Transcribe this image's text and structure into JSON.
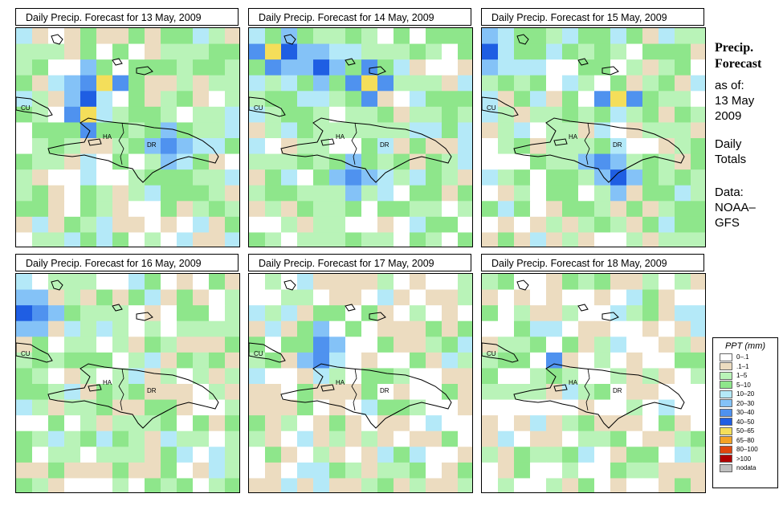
{
  "panels": [
    {
      "title": "Daily Precip. Forecast for  13 May, 2009",
      "seed": 11,
      "hot": [
        [
          3,
          5,
          0.95
        ],
        [
          4,
          4,
          0.9
        ],
        [
          5,
          4,
          0.95
        ],
        [
          3,
          4,
          0.8
        ],
        [
          7,
          9,
          0.7
        ]
      ],
      "pale": 0.35
    },
    {
      "title": "Daily Precip. Forecast for  14 May, 2009",
      "seed": 23,
      "hot": [
        [
          1,
          1,
          0.95
        ],
        [
          1,
          2,
          0.9
        ],
        [
          2,
          4,
          0.9
        ],
        [
          3,
          7,
          0.95
        ],
        [
          9,
          6,
          0.8
        ]
      ],
      "pale": 0.25
    },
    {
      "title": "Daily Precip. Forecast for  15 May, 2009",
      "seed": 37,
      "hot": [
        [
          1,
          0,
          0.85
        ],
        [
          4,
          8,
          0.95
        ],
        [
          9,
          8,
          0.85
        ],
        [
          8,
          7,
          0.75
        ]
      ],
      "pale": 0.3
    },
    {
      "title": "Daily Precip. Forecast for  16 May, 2009",
      "seed": 41,
      "hot": [
        [
          2,
          0,
          0.85
        ],
        [
          2,
          1,
          0.8
        ]
      ],
      "pale": 0.45
    },
    {
      "title": "Daily Precip. Forecast for  17 May, 2009",
      "seed": 53,
      "hot": [
        [
          5,
          4,
          0.8
        ],
        [
          4,
          4,
          0.7
        ]
      ],
      "pale": 0.55
    },
    {
      "title": "Daily Precip. Forecast for  18 May, 2009",
      "seed": 67,
      "hot": [
        [
          5,
          4,
          0.55
        ]
      ],
      "pale": 0.6
    }
  ],
  "map_labels": {
    "cu": "CU",
    "ha": "HA",
    "dr": "DR"
  },
  "side": {
    "heading_line1": "Precip.",
    "heading_line2": "Forecast",
    "asof": "as of:",
    "date_line1": "13 May",
    "date_line2": "2009",
    "daily_line1": "Daily",
    "daily_line2": "Totals",
    "data_line1": "Data:",
    "data_line2": "NOAA–",
    "data_line3": "GFS"
  },
  "legend": {
    "title": "PPT (mm)",
    "items": [
      {
        "label": "0–.1",
        "color": "#ffffff"
      },
      {
        "label": ".1–1",
        "color": "#ecdcc0"
      },
      {
        "label": "1–5",
        "color": "#b9f3b8"
      },
      {
        "label": "5–10",
        "color": "#8ee68b"
      },
      {
        "label": "10–20",
        "color": "#b4e9f8"
      },
      {
        "label": "20–30",
        "color": "#84c2f7"
      },
      {
        "label": "30–40",
        "color": "#4f92ef"
      },
      {
        "label": "40–50",
        "color": "#1f5ee3"
      },
      {
        "label": "50–65",
        "color": "#f4de5a"
      },
      {
        "label": "65–80",
        "color": "#f4a226"
      },
      {
        "label": "80–100",
        "color": "#e0460d"
      },
      {
        "label": ">100",
        "color": "#b00000"
      },
      {
        "label": "nodata",
        "color": "#c0c0c0"
      }
    ]
  }
}
